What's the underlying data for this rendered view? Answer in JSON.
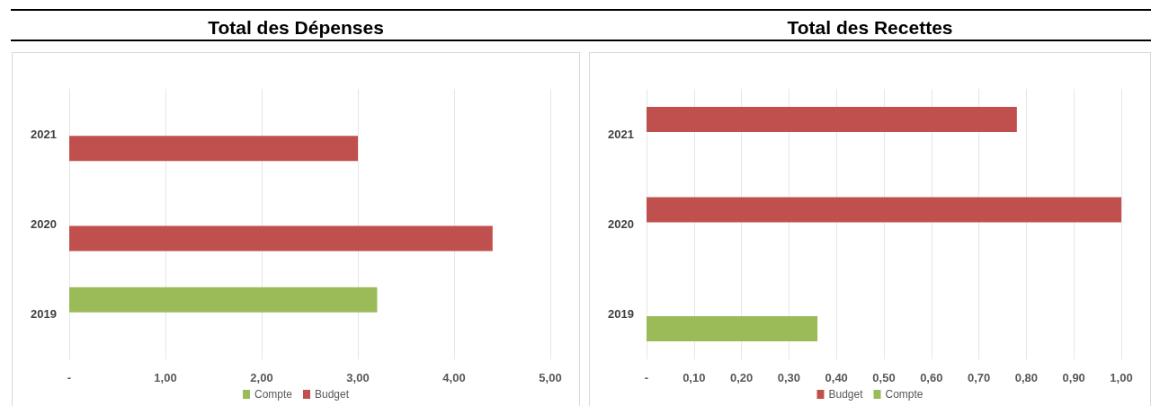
{
  "chart_data": [
    {
      "type": "bar",
      "orientation": "horizontal",
      "title": "Total des Dépenses",
      "categories": [
        "2021",
        "2020",
        "2019"
      ],
      "series": [
        {
          "name": "Compte",
          "color": "#9bbb59",
          "values": [
            0,
            0,
            3.2
          ]
        },
        {
          "name": "Budget",
          "color": "#c0504d",
          "values": [
            3.0,
            4.4,
            0
          ]
        }
      ],
      "xlim": [
        0,
        5
      ],
      "xticks": [
        {
          "value": 0,
          "label": "-"
        },
        {
          "value": 1,
          "label": "1,00"
        },
        {
          "value": 2,
          "label": "2,00"
        },
        {
          "value": 3,
          "label": "3,00"
        },
        {
          "value": 4,
          "label": "4,00"
        },
        {
          "value": 5,
          "label": "5,00"
        }
      ],
      "grid": "x",
      "legend": "bottom"
    },
    {
      "type": "bar",
      "orientation": "horizontal",
      "title": "Total des Recettes",
      "categories": [
        "2021",
        "2020",
        "2019"
      ],
      "series": [
        {
          "name": "Budget",
          "color": "#c0504d",
          "values": [
            0.78,
            1.0,
            0
          ]
        },
        {
          "name": "Compte",
          "color": "#9bbb59",
          "values": [
            0,
            0,
            0.36
          ]
        }
      ],
      "xlim": [
        0,
        1
      ],
      "xticks": [
        {
          "value": 0,
          "label": "-"
        },
        {
          "value": 0.1,
          "label": "0,10"
        },
        {
          "value": 0.2,
          "label": "0,20"
        },
        {
          "value": 0.3,
          "label": "0,30"
        },
        {
          "value": 0.4,
          "label": "0,40"
        },
        {
          "value": 0.5,
          "label": "0,50"
        },
        {
          "value": 0.6,
          "label": "0,60"
        },
        {
          "value": 0.7,
          "label": "0,70"
        },
        {
          "value": 0.8,
          "label": "0,80"
        },
        {
          "value": 0.9,
          "label": "0,90"
        },
        {
          "value": 1,
          "label": "1,00"
        }
      ],
      "grid": "x",
      "legend": "bottom"
    }
  ]
}
